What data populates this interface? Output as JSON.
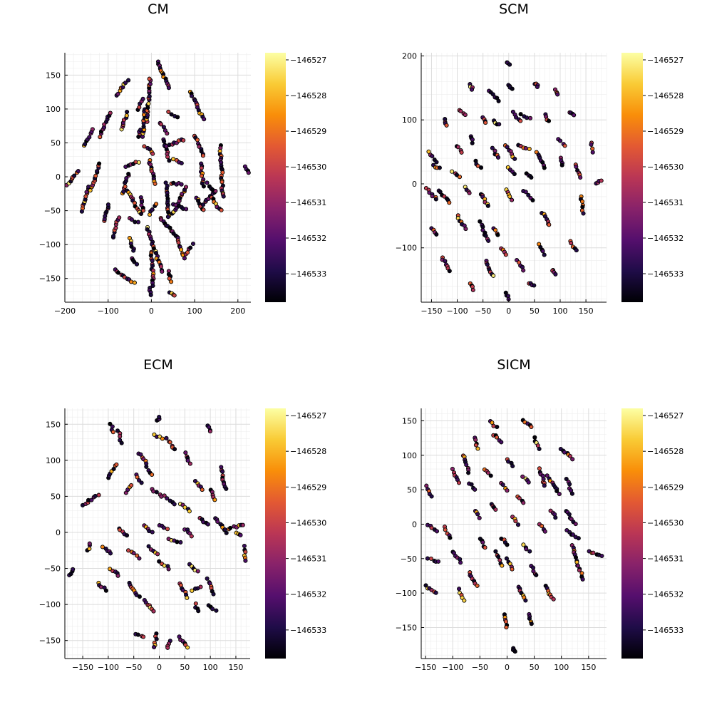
{
  "figure": {
    "colormap": "inferno",
    "colormap_stops": [
      "#000004",
      "#1f0c48",
      "#550f6d",
      "#88226a",
      "#ba3655",
      "#e35933",
      "#f98e09",
      "#f9cb35",
      "#fcffa4"
    ],
    "marker_edge_color": "#000000",
    "grid": true
  },
  "colorbar": {
    "range": [
      -146533.8,
      -146526.8
    ],
    "ticks": [
      -146533,
      -146532,
      -146531,
      -146530,
      -146529,
      -146528,
      -146527
    ],
    "tick_labels": [
      "−146533",
      "−146532",
      "−146531",
      "−146530",
      "−146529",
      "−146528",
      "−146527"
    ]
  },
  "chart_data": [
    {
      "type": "scatter",
      "title": "CM",
      "xlim": [
        -200,
        230
      ],
      "ylim": [
        -185,
        183
      ],
      "xticks": [
        -200,
        -100,
        0,
        100,
        200
      ],
      "xtick_labels": [
        "−200",
        "−100",
        "0",
        "100",
        "200"
      ],
      "yticks": [
        -150,
        -100,
        -50,
        0,
        50,
        100,
        150
      ],
      "ytick_labels": [
        "−150",
        "−100",
        "−50",
        "0",
        "50",
        "100",
        "150"
      ],
      "clusters": [
        [
          -195,
          -12,
          -170,
          8
        ],
        [
          -160,
          -50,
          -145,
          -15
        ],
        [
          -155,
          45,
          -135,
          70
        ],
        [
          -140,
          -20,
          -120,
          20
        ],
        [
          -120,
          60,
          -95,
          95
        ],
        [
          -108,
          -65,
          -98,
          -40
        ],
        [
          -90,
          -90,
          -75,
          -60
        ],
        [
          -80,
          120,
          -55,
          143
        ],
        [
          -70,
          70,
          -55,
          95
        ],
        [
          -68,
          -25,
          -52,
          5
        ],
        [
          -60,
          15,
          -30,
          22
        ],
        [
          -55,
          -20,
          -25,
          -55
        ],
        [
          -50,
          -60,
          -30,
          -68
        ],
        [
          -50,
          -90,
          -40,
          -110
        ],
        [
          -45,
          -120,
          -35,
          -130
        ],
        [
          -85,
          -138,
          -40,
          -157
        ],
        [
          -30,
          100,
          -20,
          115
        ],
        [
          -30,
          60,
          -25,
          70
        ],
        [
          -20,
          60,
          -15,
          100
        ],
        [
          -25,
          -30,
          -20,
          -50
        ],
        [
          -10,
          80,
          -3,
          145
        ],
        [
          -15,
          45,
          5,
          35
        ],
        [
          -10,
          -75,
          25,
          -140
        ],
        [
          -5,
          25,
          10,
          -10
        ],
        [
          -5,
          -55,
          10,
          -40
        ],
        [
          0,
          -110,
          5,
          -160
        ],
        [
          -5,
          -165,
          -1,
          -175
        ],
        [
          15,
          170,
          40,
          130
        ],
        [
          20,
          80,
          35,
          65
        ],
        [
          30,
          55,
          40,
          25
        ],
        [
          35,
          -10,
          40,
          -60
        ],
        [
          20,
          -60,
          60,
          -90
        ],
        [
          40,
          -140,
          45,
          -155
        ],
        [
          40,
          -170,
          55,
          -175
        ],
        [
          30,
          45,
          75,
          55
        ],
        [
          50,
          25,
          70,
          20
        ],
        [
          50,
          -55,
          80,
          -15
        ],
        [
          50,
          -40,
          80,
          -48
        ],
        [
          60,
          -90,
          75,
          -120
        ],
        [
          80,
          -115,
          95,
          -100
        ],
        [
          90,
          125,
          120,
          85
        ],
        [
          40,
          95,
          60,
          88
        ],
        [
          45,
          -10,
          70,
          -10
        ],
        [
          100,
          60,
          120,
          30
        ],
        [
          105,
          -30,
          120,
          -50
        ],
        [
          120,
          -40,
          150,
          -20
        ],
        [
          140,
          -30,
          160,
          -50
        ],
        [
          115,
          20,
          120,
          -15
        ],
        [
          130,
          -10,
          140,
          -20
        ],
        [
          160,
          45,
          165,
          -30
        ],
        [
          218,
          15,
          225,
          5
        ]
      ]
    },
    {
      "type": "scatter",
      "title": "SCM",
      "xlim": [
        -170,
        190
      ],
      "ylim": [
        -185,
        205
      ],
      "xticks": [
        -150,
        -100,
        -50,
        0,
        50,
        100,
        150
      ],
      "xtick_labels": [
        "−150",
        "−100",
        "−50",
        "0",
        "50",
        "100",
        "150"
      ],
      "yticks": [
        -100,
        0,
        100,
        200
      ],
      "ytick_labels": [
        "−100",
        "0",
        "100",
        "200"
      ],
      "clusters": [
        [
          -3,
          190,
          3,
          187
        ],
        [
          -40,
          145,
          -20,
          130
        ],
        [
          -75,
          155,
          -70,
          148
        ],
        [
          -125,
          100,
          -122,
          92
        ],
        [
          -95,
          115,
          -85,
          108
        ],
        [
          -50,
          105,
          -45,
          95
        ],
        [
          -30,
          98,
          -20,
          92
        ],
        [
          -2,
          155,
          7,
          148
        ],
        [
          50,
          157,
          57,
          152
        ],
        [
          90,
          147,
          95,
          140
        ],
        [
          8,
          112,
          22,
          98
        ],
        [
          25,
          108,
          42,
          102
        ],
        [
          70,
          108,
          77,
          98
        ],
        [
          120,
          112,
          125,
          107
        ],
        [
          -155,
          50,
          -140,
          35
        ],
        [
          -145,
          28,
          -135,
          25
        ],
        [
          -135,
          -10,
          -115,
          -30
        ],
        [
          -160,
          -8,
          -140,
          -25
        ],
        [
          -100,
          60,
          -90,
          50
        ],
        [
          -110,
          20,
          -95,
          10
        ],
        [
          -85,
          -5,
          -75,
          -15
        ],
        [
          -55,
          -15,
          -40,
          -35
        ],
        [
          -65,
          35,
          -55,
          25
        ],
        [
          -75,
          75,
          -70,
          65
        ],
        [
          -30,
          55,
          -20,
          40
        ],
        [
          -5,
          60,
          10,
          40
        ],
        [
          0,
          25,
          10,
          15
        ],
        [
          -5,
          -10,
          5,
          -25
        ],
        [
          20,
          60,
          40,
          55
        ],
        [
          30,
          -10,
          45,
          -25
        ],
        [
          35,
          15,
          45,
          10
        ],
        [
          55,
          50,
          70,
          25
        ],
        [
          65,
          -45,
          80,
          -65
        ],
        [
          95,
          70,
          110,
          60
        ],
        [
          100,
          40,
          105,
          30
        ],
        [
          130,
          30,
          140,
          10
        ],
        [
          140,
          -20,
          145,
          -45
        ],
        [
          160,
          65,
          165,
          50
        ],
        [
          170,
          0,
          180,
          5
        ],
        [
          -150,
          -70,
          -140,
          -80
        ],
        [
          -100,
          -50,
          -85,
          -70
        ],
        [
          -55,
          -60,
          -40,
          -90
        ],
        [
          -30,
          -70,
          -20,
          -80
        ],
        [
          -15,
          -100,
          -5,
          -110
        ],
        [
          15,
          -120,
          30,
          -135
        ],
        [
          40,
          -155,
          50,
          -160
        ],
        [
          60,
          -95,
          70,
          -110
        ],
        [
          85,
          -135,
          90,
          -140
        ],
        [
          120,
          -90,
          130,
          -105
        ],
        [
          -75,
          -155,
          -70,
          -165
        ],
        [
          -45,
          -120,
          -30,
          -145
        ],
        [
          -5,
          -170,
          0,
          -180
        ],
        [
          -130,
          -115,
          -115,
          -135
        ]
      ]
    },
    {
      "type": "scatter",
      "title": "ECM",
      "xlim": [
        -185,
        178
      ],
      "ylim": [
        -175,
        172
      ],
      "xticks": [
        -150,
        -100,
        -50,
        0,
        50,
        100,
        150
      ],
      "xtick_labels": [
        "−150",
        "−100",
        "−50",
        "0",
        "50",
        "100",
        "150"
      ],
      "yticks": [
        -150,
        -100,
        -50,
        0,
        50,
        100,
        150
      ],
      "ytick_labels": [
        "−150",
        "−100",
        "−50",
        "0",
        "50",
        "100",
        "150"
      ],
      "clusters": [
        [
          -150,
          38,
          -120,
          52
        ],
        [
          -95,
          150,
          -90,
          140
        ],
        [
          -80,
          140,
          -75,
          125
        ],
        [
          -175,
          -60,
          -170,
          -50
        ],
        [
          -140,
          -25,
          -135,
          -15
        ],
        [
          -120,
          -70,
          -105,
          -80
        ],
        [
          -95,
          -50,
          -80,
          -60
        ],
        [
          -60,
          -70,
          -40,
          -90
        ],
        [
          -30,
          -95,
          -10,
          -110
        ],
        [
          -5,
          -140,
          -10,
          -160
        ],
        [
          -45,
          -140,
          -30,
          -145
        ],
        [
          20,
          -150,
          15,
          -160
        ],
        [
          40,
          -145,
          55,
          -160
        ],
        [
          70,
          -100,
          75,
          -110
        ],
        [
          95,
          -100,
          110,
          -108
        ],
        [
          95,
          -65,
          105,
          -85
        ],
        [
          80,
          -75,
          65,
          -80
        ],
        [
          60,
          -45,
          75,
          -55
        ],
        [
          40,
          -70,
          55,
          -90
        ],
        [
          0,
          -40,
          20,
          -50
        ],
        [
          -20,
          -20,
          -5,
          -30
        ],
        [
          -60,
          -25,
          -40,
          -35
        ],
        [
          -80,
          5,
          -65,
          -5
        ],
        [
          -110,
          -20,
          -95,
          -30
        ],
        [
          -100,
          75,
          -85,
          95
        ],
        [
          -65,
          55,
          -55,
          65
        ],
        [
          -40,
          110,
          -25,
          95
        ],
        [
          -5,
          155,
          0,
          160
        ],
        [
          -10,
          135,
          5,
          130
        ],
        [
          15,
          130,
          30,
          115
        ],
        [
          50,
          110,
          60,
          95
        ],
        [
          95,
          148,
          100,
          140
        ],
        [
          70,
          70,
          85,
          60
        ],
        [
          100,
          60,
          110,
          45
        ],
        [
          120,
          90,
          130,
          60
        ],
        [
          110,
          20,
          130,
          0
        ],
        [
          130,
          5,
          165,
          10
        ],
        [
          150,
          0,
          160,
          -5
        ],
        [
          165,
          -20,
          170,
          -40
        ],
        [
          40,
          40,
          60,
          30
        ],
        [
          10,
          50,
          30,
          40
        ],
        [
          -15,
          60,
          5,
          50
        ],
        [
          -30,
          10,
          -15,
          0
        ],
        [
          0,
          10,
          15,
          5
        ],
        [
          20,
          -10,
          40,
          -15
        ],
        [
          50,
          5,
          65,
          -5
        ],
        [
          80,
          20,
          95,
          10
        ],
        [
          -45,
          80,
          -35,
          70
        ],
        [
          -25,
          90,
          -15,
          80
        ]
      ]
    },
    {
      "type": "scatter",
      "title": "SICM",
      "xlim": [
        -158,
        183
      ],
      "ylim": [
        -195,
        168
      ],
      "xticks": [
        -150,
        -100,
        -50,
        0,
        50,
        100,
        150
      ],
      "xtick_labels": [
        "−150",
        "−100",
        "−50",
        "0",
        "50",
        "100",
        "150"
      ],
      "yticks": [
        -150,
        -100,
        -50,
        0,
        50,
        100,
        150
      ],
      "ytick_labels": [
        "−150",
        "−100",
        "−50",
        "0",
        "50",
        "100",
        "150"
      ],
      "clusters": [
        [
          -150,
          55,
          -140,
          40
        ],
        [
          -145,
          0,
          -130,
          -10
        ],
        [
          -145,
          -50,
          -125,
          -55
        ],
        [
          -150,
          -90,
          -130,
          -100
        ],
        [
          -115,
          -5,
          -105,
          -20
        ],
        [
          -100,
          80,
          -90,
          60
        ],
        [
          -80,
          100,
          -70,
          75
        ],
        [
          -60,
          125,
          -55,
          110
        ],
        [
          -30,
          150,
          -20,
          140
        ],
        [
          -25,
          130,
          -10,
          120
        ],
        [
          30,
          150,
          45,
          140
        ],
        [
          50,
          125,
          60,
          110
        ],
        [
          60,
          80,
          70,
          55
        ],
        [
          75,
          70,
          95,
          45
        ],
        [
          100,
          110,
          120,
          95
        ],
        [
          110,
          65,
          120,
          45
        ],
        [
          110,
          20,
          125,
          0
        ],
        [
          110,
          -10,
          130,
          -20
        ],
        [
          120,
          -30,
          130,
          -60
        ],
        [
          130,
          -60,
          140,
          -80
        ],
        [
          150,
          -40,
          175,
          -45
        ],
        [
          10,
          -180,
          15,
          -185
        ],
        [
          -5,
          -130,
          0,
          -150
        ],
        [
          40,
          -130,
          45,
          -145
        ],
        [
          70,
          -90,
          85,
          -110
        ],
        [
          45,
          -60,
          55,
          -75
        ],
        [
          20,
          -90,
          35,
          -110
        ],
        [
          0,
          -50,
          10,
          -65
        ],
        [
          -20,
          -40,
          -10,
          -60
        ],
        [
          -50,
          -20,
          -40,
          -35
        ],
        [
          -70,
          -70,
          -55,
          -90
        ],
        [
          -90,
          -95,
          -80,
          -110
        ],
        [
          -100,
          -40,
          -85,
          -55
        ],
        [
          -60,
          20,
          -50,
          10
        ],
        [
          -30,
          30,
          -20,
          20
        ],
        [
          -10,
          60,
          0,
          50
        ],
        [
          20,
          40,
          30,
          30
        ],
        [
          -70,
          60,
          -60,
          50
        ],
        [
          -40,
          80,
          -30,
          70
        ],
        [
          0,
          95,
          10,
          85
        ],
        [
          30,
          70,
          40,
          60
        ],
        [
          10,
          10,
          20,
          0
        ],
        [
          -10,
          -20,
          0,
          -30
        ],
        [
          30,
          -30,
          40,
          -40
        ],
        [
          60,
          0,
          70,
          -10
        ],
        [
          80,
          20,
          90,
          10
        ]
      ]
    }
  ]
}
